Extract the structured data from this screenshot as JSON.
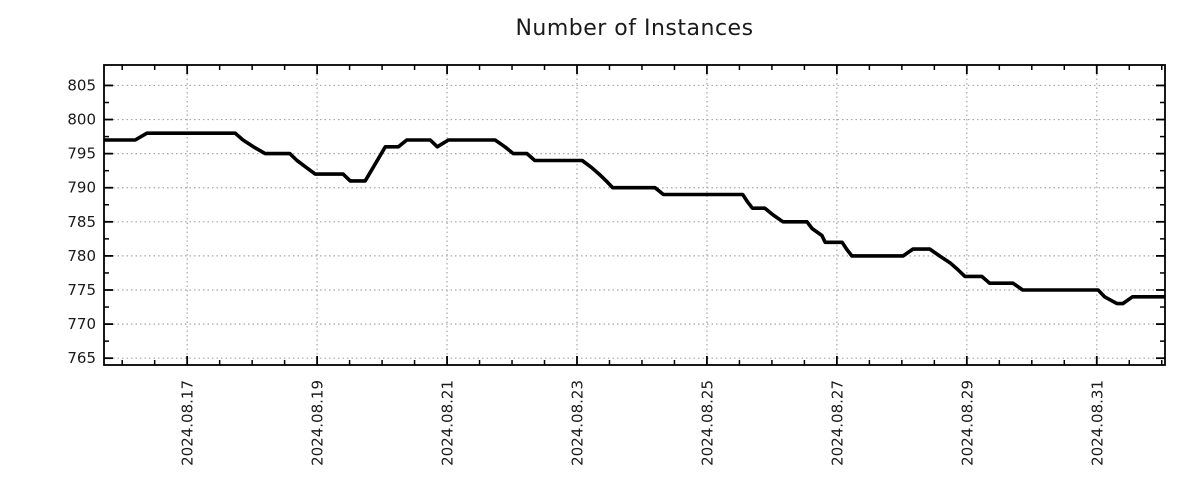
{
  "chart_data": {
    "type": "line",
    "title": "Number of Instances",
    "xlabel": "",
    "ylabel": "",
    "grid": true,
    "legend": "none",
    "colors": {
      "line": "#000000",
      "grid": "#a6a6a6",
      "border": "#000000",
      "text": "#1a1a1a",
      "background": "#ffffff"
    },
    "x_axis": {
      "unit": "days since 2024.08.15 00:00",
      "range": [
        0.72,
        17.05
      ],
      "major_ticks": [
        {
          "x": 2,
          "label": "2024.08.17"
        },
        {
          "x": 4,
          "label": "2024.08.19"
        },
        {
          "x": 6,
          "label": "2024.08.21"
        },
        {
          "x": 8,
          "label": "2024.08.23"
        },
        {
          "x": 10,
          "label": "2024.08.25"
        },
        {
          "x": 12,
          "label": "2024.08.27"
        },
        {
          "x": 14,
          "label": "2024.08.29"
        },
        {
          "x": 16,
          "label": "2024.08.31"
        }
      ],
      "minor_step": 0.5,
      "label_rotation_deg": -90
    },
    "y_axis": {
      "range": [
        764,
        808
      ],
      "major_ticks": [
        765,
        770,
        775,
        780,
        785,
        790,
        795,
        800,
        805
      ],
      "minor_step": 2.5
    },
    "series": [
      {
        "name": "instances",
        "line_width": 3.6,
        "points": [
          [
            0.72,
            797
          ],
          [
            1.2,
            797
          ],
          [
            1.38,
            798
          ],
          [
            2.74,
            798
          ],
          [
            2.86,
            797
          ],
          [
            3.02,
            796
          ],
          [
            3.2,
            795
          ],
          [
            3.58,
            795
          ],
          [
            3.69,
            794
          ],
          [
            3.83,
            793
          ],
          [
            3.97,
            792
          ],
          [
            4.4,
            792
          ],
          [
            4.51,
            791
          ],
          [
            4.74,
            791
          ],
          [
            5.05,
            796
          ],
          [
            5.25,
            796
          ],
          [
            5.38,
            797
          ],
          [
            5.74,
            797
          ],
          [
            5.85,
            796
          ],
          [
            6.02,
            797
          ],
          [
            6.74,
            797
          ],
          [
            6.89,
            796
          ],
          [
            7.02,
            795
          ],
          [
            7.23,
            795
          ],
          [
            7.35,
            794
          ],
          [
            8.08,
            794
          ],
          [
            8.22,
            793
          ],
          [
            8.34,
            792
          ],
          [
            8.45,
            791
          ],
          [
            8.55,
            790
          ],
          [
            9.2,
            790
          ],
          [
            9.33,
            789
          ],
          [
            10.55,
            789
          ],
          [
            10.62,
            788
          ],
          [
            10.7,
            787
          ],
          [
            10.89,
            787
          ],
          [
            11.02,
            786
          ],
          [
            11.17,
            785
          ],
          [
            11.54,
            785
          ],
          [
            11.62,
            784
          ],
          [
            11.77,
            783
          ],
          [
            11.82,
            782
          ],
          [
            12.08,
            782
          ],
          [
            12.15,
            781
          ],
          [
            12.23,
            780
          ],
          [
            13.02,
            780
          ],
          [
            13.17,
            781
          ],
          [
            13.43,
            781
          ],
          [
            13.58,
            780
          ],
          [
            13.74,
            779
          ],
          [
            13.86,
            778
          ],
          [
            13.97,
            777
          ],
          [
            14.23,
            777
          ],
          [
            14.35,
            776
          ],
          [
            14.71,
            776
          ],
          [
            14.86,
            775
          ],
          [
            16.02,
            775
          ],
          [
            16.12,
            774
          ],
          [
            16.31,
            773
          ],
          [
            16.4,
            773
          ],
          [
            16.55,
            774
          ],
          [
            17.05,
            774
          ]
        ]
      }
    ]
  }
}
